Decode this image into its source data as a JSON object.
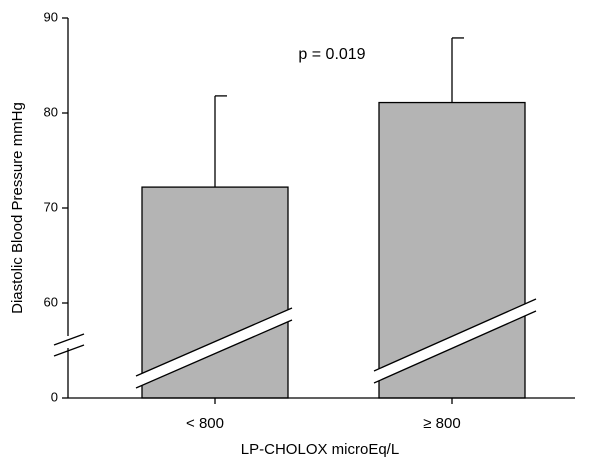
{
  "chart_data": {
    "type": "bar",
    "y_label": "Diastolic Blood Pressure mmHg",
    "x_label": "LP-CHOLOX microEq/L",
    "annotation": "p = 0.019",
    "categories": [
      "< 800",
      "≥ 800"
    ],
    "values": [
      72.2,
      81.1
    ],
    "errors": [
      9.6,
      6.8
    ],
    "color": "#b4b4b4",
    "ylim": [
      0,
      90
    ],
    "yticks": [
      0,
      60,
      70,
      80,
      90
    ],
    "axis_break": [
      0,
      50
    ]
  }
}
